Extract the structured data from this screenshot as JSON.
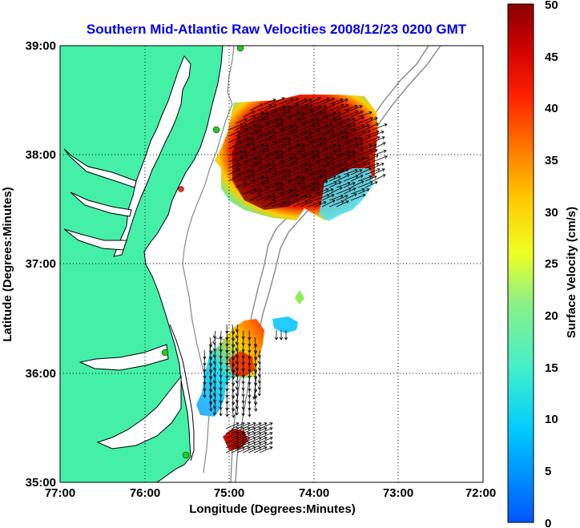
{
  "title": "Southern Mid-Atlantic Raw Velocities 2008/12/23 0200 GMT",
  "x_axis": {
    "label": "Longitude (Degrees:Minutes)",
    "ticks": [
      "77:00",
      "76:00",
      "75:00",
      "74:00",
      "73:00",
      "72:00"
    ]
  },
  "y_axis": {
    "label": "Latitude (Degrees:Minutes)",
    "ticks": [
      "39:00",
      "38:00",
      "37:00",
      "36:00",
      "35:00"
    ]
  },
  "colorbar": {
    "label": "Surface Velocity (cm/s)",
    "ticks": [
      "50",
      "45",
      "40",
      "35",
      "30",
      "25",
      "20",
      "15",
      "10",
      "5",
      "0"
    ]
  },
  "colors": {
    "land": "#44f0a8",
    "coast": "#000000",
    "isobath": "#888888",
    "title": "#0000ee",
    "station": "#22cc22",
    "station_alt": "#ee3322"
  },
  "map": {
    "lon_range": [
      -77,
      -72
    ],
    "lat_range": [
      35,
      39
    ],
    "grid": "dotted"
  }
}
